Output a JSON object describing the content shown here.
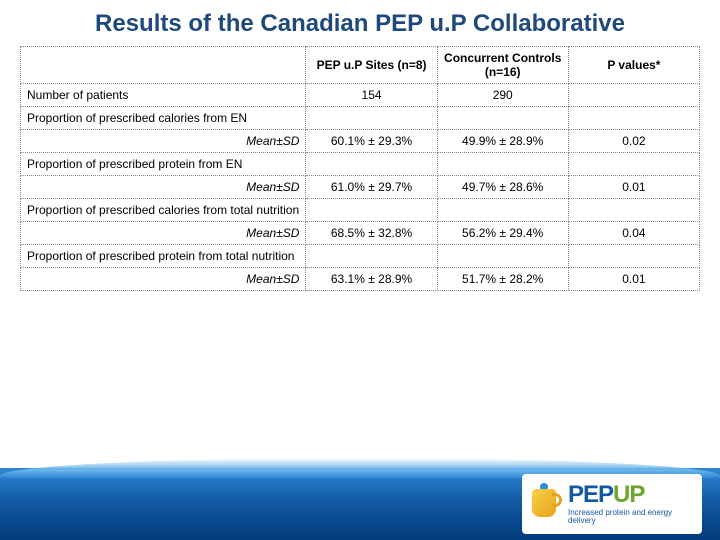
{
  "title": "Results of the Canadian PEP u.P Collaborative",
  "headers": {
    "blank": "",
    "c1": "PEP u.P Sites (n=8)",
    "c2": "Concurrent Controls (n=16)",
    "c3": "P values*"
  },
  "rows": [
    {
      "label": "Number of patients",
      "align": "left",
      "c1": "154",
      "c2": "290",
      "c3": ""
    },
    {
      "label": "Proportion of prescribed calories from EN",
      "align": "left",
      "c1": "",
      "c2": "",
      "c3": ""
    },
    {
      "label": "Mean±SD",
      "align": "right",
      "c1": "60.1% ± 29.3%",
      "c2": "49.9% ± 28.9%",
      "c3": "0.02"
    },
    {
      "label": "Proportion of prescribed protein from EN",
      "align": "left",
      "c1": "",
      "c2": "",
      "c3": ""
    },
    {
      "label": "Mean±SD",
      "align": "right",
      "c1": "61.0% ± 29.7%",
      "c2": "49.7% ± 28.6%",
      "c3": "0.01"
    },
    {
      "label": "Proportion of prescribed calories from total nutrition",
      "align": "left",
      "c1": "",
      "c2": "",
      "c3": ""
    },
    {
      "label": "Mean±SD",
      "align": "right",
      "c1": "68.5% ± 32.8%",
      "c2": "56.2% ± 29.4%",
      "c3": "0.04"
    },
    {
      "label": "Proportion of prescribed protein from total nutrition",
      "align": "left",
      "c1": "",
      "c2": "",
      "c3": ""
    },
    {
      "label": "Mean±SD",
      "align": "right",
      "c1": "63.1% ± 28.9%",
      "c2": "51.7% ± 28.2%",
      "c3": "0.01"
    }
  ],
  "logo": {
    "text_blue": "PEP",
    "text_green": "UP",
    "tagline": "Increased protein and energy delivery"
  },
  "style": {
    "title_color": "#1f497d",
    "border_color": "#888888",
    "footer_gradient_top": "#2f88d6",
    "footer_gradient_bottom": "#023a7a",
    "font_size_title": 24,
    "font_size_table": 12
  }
}
